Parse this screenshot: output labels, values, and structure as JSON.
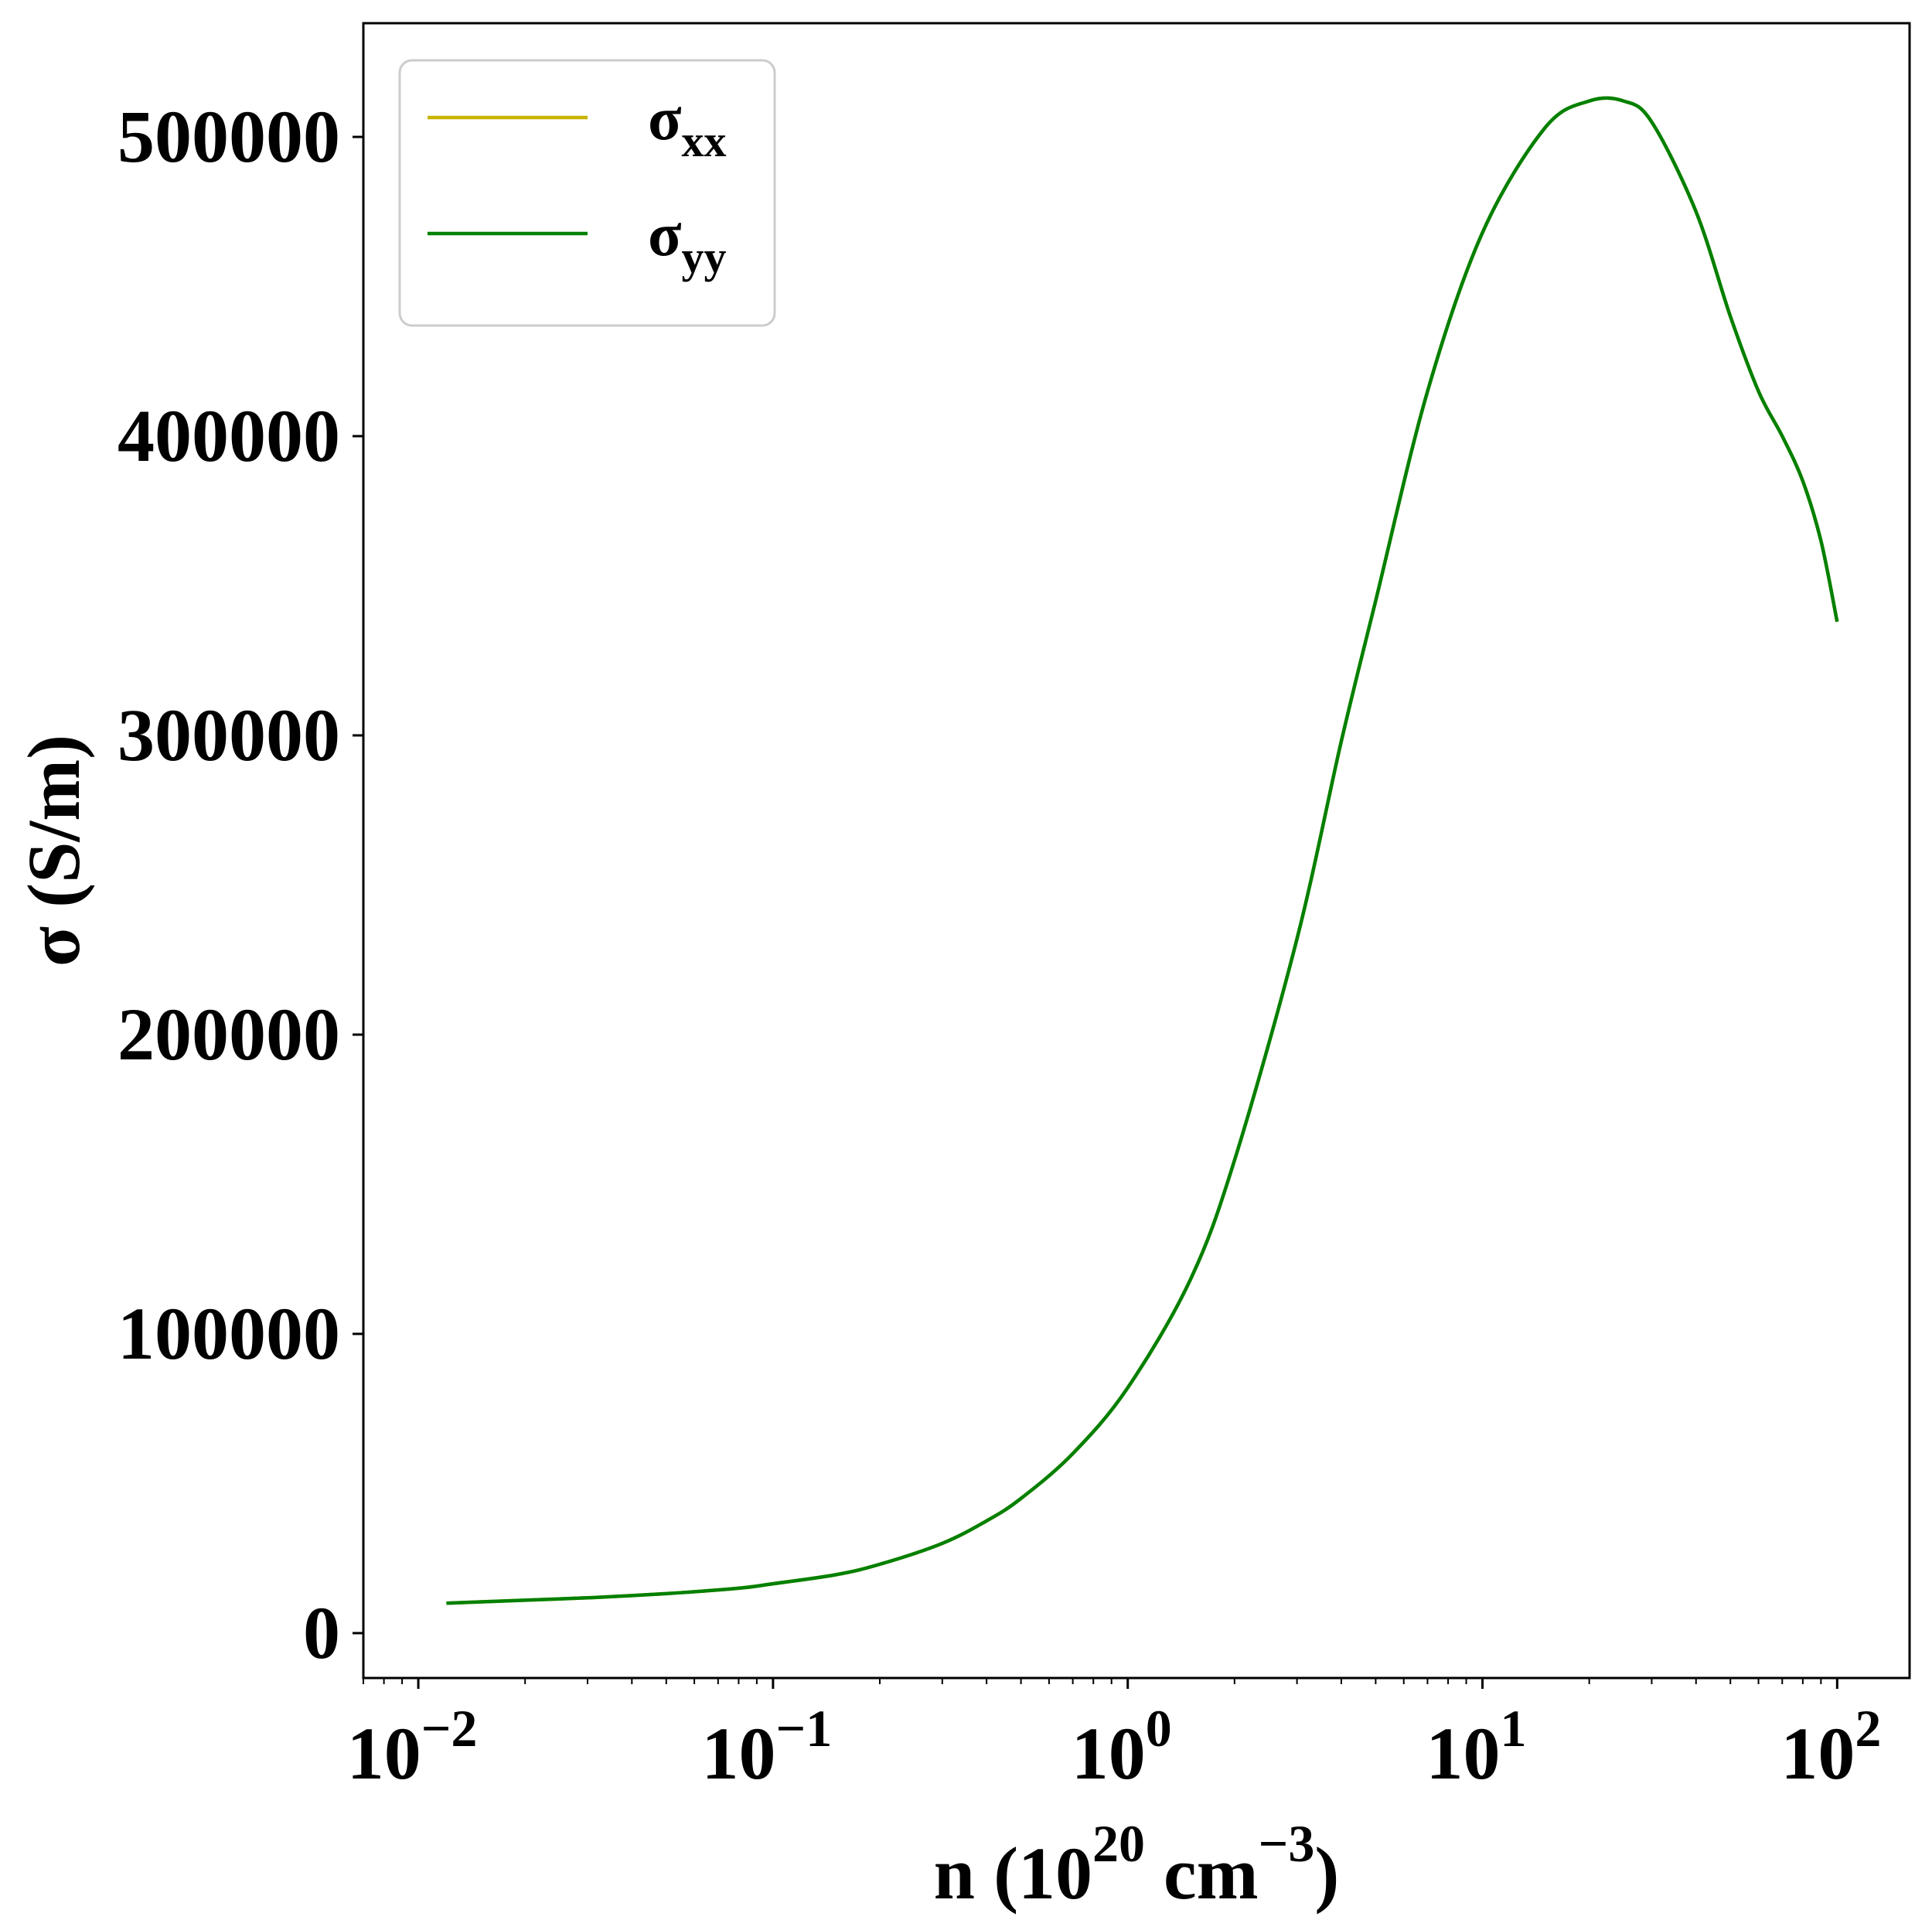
{
  "chart_data": {
    "type": "line",
    "xscale": "log",
    "xlim": [
      0.007,
      160
    ],
    "ylim": [
      -15000,
      538000
    ],
    "xlabel": {
      "base": "n (10",
      "exp1": "20",
      "mid": " cm",
      "exp2": "−3",
      "end": ")"
    },
    "ylabel": "σ (S/m)",
    "yticks": [
      {
        "value": 0,
        "label": "0"
      },
      {
        "value": 100000,
        "label": "100000"
      },
      {
        "value": 200000,
        "label": "200000"
      },
      {
        "value": 300000,
        "label": "300000"
      },
      {
        "value": 400000,
        "label": "400000"
      },
      {
        "value": 500000,
        "label": "500000"
      }
    ],
    "xticks": [
      {
        "value": 0.01,
        "base": "10",
        "exp": "−2"
      },
      {
        "value": 0.1,
        "base": "10",
        "exp": "−1"
      },
      {
        "value": 1,
        "base": "10",
        "exp": "0"
      },
      {
        "value": 10,
        "base": "10",
        "exp": "1"
      },
      {
        "value": 100,
        "base": "10",
        "exp": "2"
      }
    ],
    "legend": {
      "position": "top-left",
      "entries": [
        {
          "base": "σ",
          "sub": "xx",
          "color": "#c8b400"
        },
        {
          "base": "σ",
          "sub": "yy",
          "color": "#008000"
        }
      ]
    },
    "series": [
      {
        "name": "σxx",
        "color": "#c8b400",
        "x": [
          0.012,
          0.02,
          0.03,
          0.05,
          0.08,
          0.1,
          0.15,
          0.2,
          0.3,
          0.4,
          0.5,
          0.7,
          1.0,
          1.5,
          2.0,
          3.0,
          4.0,
          5.0,
          7.0,
          10.0,
          15.0,
          20.0,
          25.0,
          30.0,
          40.0,
          50.0,
          60.0,
          70.0,
          80.0,
          90.0,
          100.0
        ],
        "y": [
          10000,
          11000,
          11800,
          13200,
          15000,
          16500,
          19500,
          23000,
          30000,
          37500,
          45000,
          60000,
          82000,
          118000,
          158000,
          232000,
          298000,
          345000,
          415000,
          468000,
          503000,
          512000,
          512000,
          505000,
          475000,
          440000,
          415000,
          400000,
          385000,
          365000,
          338000
        ]
      },
      {
        "name": "σyy",
        "color": "#008000",
        "x": [
          0.012,
          0.02,
          0.03,
          0.05,
          0.08,
          0.1,
          0.15,
          0.2,
          0.3,
          0.4,
          0.5,
          0.7,
          1.0,
          1.5,
          2.0,
          3.0,
          4.0,
          5.0,
          7.0,
          10.0,
          15.0,
          20.0,
          25.0,
          30.0,
          40.0,
          50.0,
          60.0,
          70.0,
          80.0,
          90.0,
          100.0
        ],
        "y": [
          10000,
          11000,
          11800,
          13200,
          15000,
          16500,
          19500,
          23000,
          30000,
          37500,
          45000,
          60000,
          82000,
          118000,
          158000,
          232000,
          298000,
          345000,
          415000,
          468000,
          503000,
          512000,
          512000,
          505000,
          475000,
          440000,
          415000,
          400000,
          385000,
          365000,
          338000
        ]
      }
    ],
    "grid": false
  }
}
